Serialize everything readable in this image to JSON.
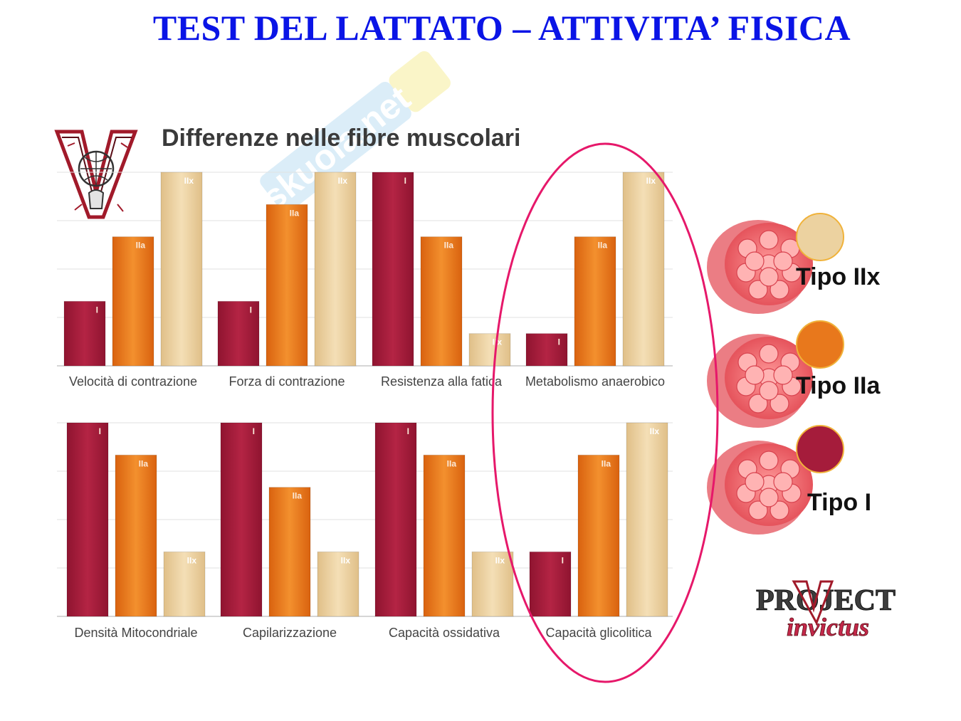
{
  "slide_title": "TEST DEL LATTATO – ATTIVITA’ FISICA",
  "chart_heading": "Differenze nelle fibre muscolari",
  "colors": {
    "type_I": "#a51c3b",
    "type_IIa": "#e8781c",
    "type_IIx": "#ecd2a0",
    "highlight_ellipse": "#e6186a",
    "title": "#0a14e6"
  },
  "chart_data": [
    {
      "type": "bar",
      "title": "Velocità di contrazione",
      "categories": [
        "I",
        "IIa",
        "IIx"
      ],
      "values": [
        1,
        2,
        3
      ],
      "ylim": [
        0,
        3
      ],
      "grid": true
    },
    {
      "type": "bar",
      "title": "Forza di contrazione",
      "categories": [
        "I",
        "IIa",
        "IIx"
      ],
      "values": [
        1,
        2.5,
        3
      ],
      "ylim": [
        0,
        3
      ],
      "grid": true
    },
    {
      "type": "bar",
      "title": "Resistenza alla fatica",
      "categories": [
        "I",
        "IIa",
        "IIx"
      ],
      "values": [
        3,
        2,
        0.5
      ],
      "ylim": [
        0,
        3
      ],
      "grid": true
    },
    {
      "type": "bar",
      "title": "Metabolismo anaerobico",
      "categories": [
        "I",
        "IIa",
        "IIx"
      ],
      "values": [
        0.5,
        2,
        3
      ],
      "ylim": [
        0,
        3
      ],
      "grid": true
    },
    {
      "type": "bar",
      "title": "Densità Mitocondriale",
      "categories": [
        "I",
        "IIa",
        "IIx"
      ],
      "values": [
        3,
        2.5,
        1
      ],
      "ylim": [
        0,
        3
      ],
      "grid": true
    },
    {
      "type": "bar",
      "title": "Capilarizzazione",
      "categories": [
        "I",
        "IIa",
        "IIx"
      ],
      "values": [
        3,
        2,
        1
      ],
      "ylim": [
        0,
        3
      ],
      "grid": true
    },
    {
      "type": "bar",
      "title": "Capacità ossidativa",
      "categories": [
        "I",
        "IIa",
        "IIx"
      ],
      "values": [
        3,
        2.5,
        1
      ],
      "ylim": [
        0,
        3
      ],
      "grid": true
    },
    {
      "type": "bar",
      "title": "Capacità glicolitica",
      "categories": [
        "I",
        "IIa",
        "IIx"
      ],
      "values": [
        1,
        2.5,
        3
      ],
      "ylim": [
        0,
        3
      ],
      "grid": true
    }
  ],
  "legend": [
    {
      "label": "Tipo IIx",
      "color": "#ecd2a0"
    },
    {
      "label": "Tipo IIa",
      "color": "#e8781c"
    },
    {
      "label": "Tipo I",
      "color": "#a51c3b"
    }
  ],
  "logos": {
    "project_line1": "PROJECT",
    "project_line2": "invictus",
    "watermark": "skuola.net"
  }
}
